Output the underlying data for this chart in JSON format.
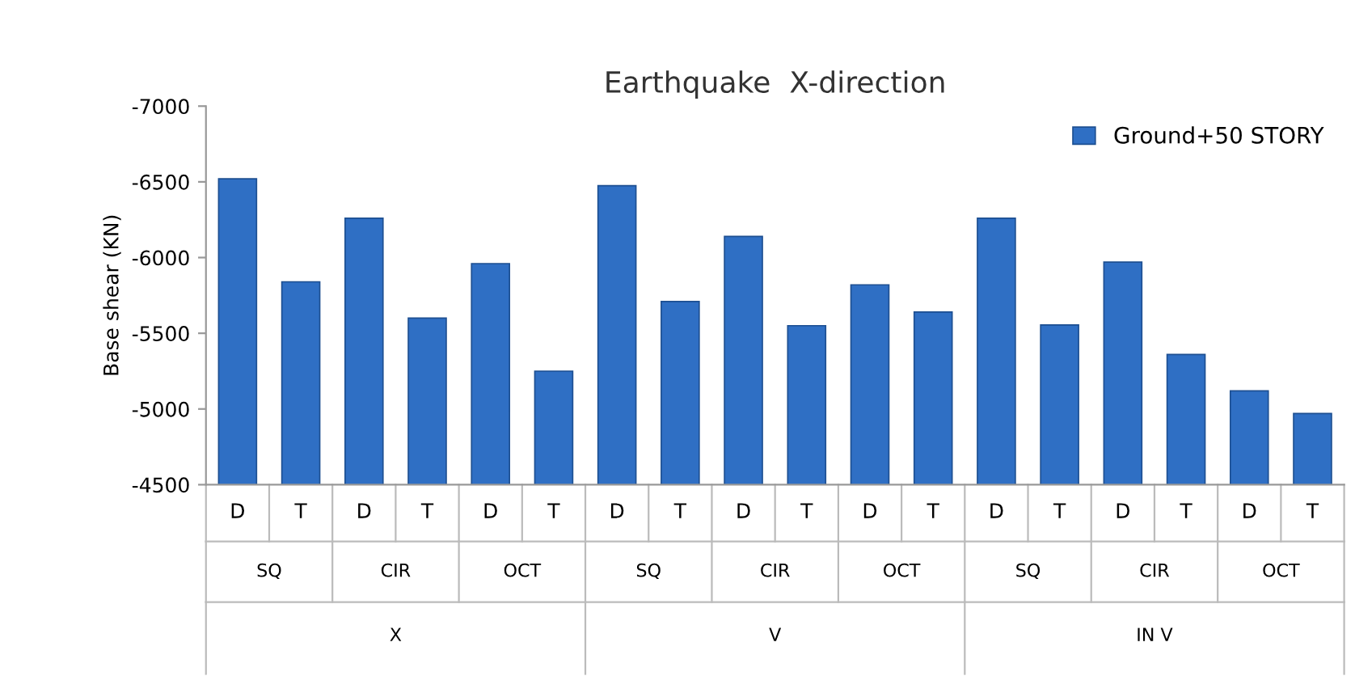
{
  "chart_data": {
    "type": "bar",
    "title": "Earthquake  X-direction",
    "ylabel": "Base shear (KN)",
    "categories": [
      "D",
      "T",
      "D",
      "T",
      "D",
      "T",
      "D",
      "T",
      "D",
      "T",
      "D",
      "T",
      "D",
      "T",
      "D",
      "T",
      "D",
      "T"
    ],
    "series": [
      {
        "name": "Ground+50 STORY",
        "color": "#2f6fc4",
        "values": [
          -6520,
          -5840,
          -6260,
          -5600,
          -5960,
          -5250,
          -6475,
          -5710,
          -6140,
          -5550,
          -5820,
          -5640,
          -6260,
          -5555,
          -5970,
          -5360,
          -5120,
          -4970
        ]
      }
    ],
    "annotations": [
      "SQ",
      "CIR",
      "OCT",
      "SQ",
      "CIR",
      "OCT",
      "SQ",
      "CIR",
      "OCT",
      "X",
      "V",
      "IN V"
    ],
    "ylim": [
      -4500,
      -7000
    ],
    "yticks": [
      -4500,
      -5000,
      -5500,
      -6000,
      -6500,
      -7000
    ],
    "grid": false,
    "legend": "top right"
  }
}
